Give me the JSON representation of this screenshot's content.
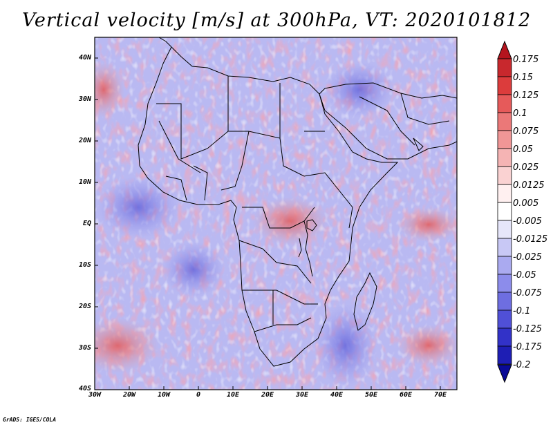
{
  "title": "Vertical velocity [m/s] at 300hPa, VT: 2020101812",
  "credit": "GrADS: IGES/COLA",
  "axes": {
    "y_ticks": [
      "40N",
      "30N",
      "20N",
      "10N",
      "EQ",
      "10S",
      "20S",
      "30S",
      "40S"
    ],
    "x_ticks": [
      "30W",
      "20W",
      "10W",
      "0",
      "10E",
      "20E",
      "30E",
      "40E",
      "50E",
      "60E",
      "70E"
    ],
    "lon_range": [
      -30,
      75
    ],
    "lat_range": [
      -40,
      45
    ]
  },
  "colorbar": {
    "labels": [
      "0.175",
      "0.15",
      "0.125",
      "0.1",
      "0.075",
      "0.05",
      "0.025",
      "0.0125",
      "0.005",
      "-0.005",
      "-0.0125",
      "-0.025",
      "-0.05",
      "-0.075",
      "-0.1",
      "-0.125",
      "-0.175",
      "-0.2"
    ],
    "colors": [
      "#b4141e",
      "#c8282d",
      "#dc3c3c",
      "#e65a5a",
      "#eb7878",
      "#f09696",
      "#f5b4b4",
      "#fad2d2",
      "#fff0f0",
      "#ffffff",
      "#e6e6fa",
      "#c8c8f5",
      "#aaaaf0",
      "#8c8ceb",
      "#6e6ee1",
      "#5050d7",
      "#3232c8",
      "#1e1eb4",
      "#0a0a96"
    ]
  }
}
